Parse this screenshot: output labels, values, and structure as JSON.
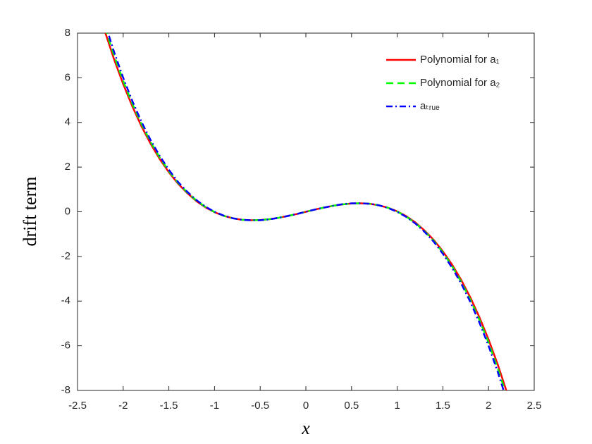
{
  "chart_data": {
    "type": "line",
    "xlabel": "x",
    "ylabel": "drift term",
    "x": [
      -2.2,
      -2.1,
      -2.0,
      -1.9,
      -1.8,
      -1.7,
      -1.6,
      -1.5,
      -1.4,
      -1.3,
      -1.2,
      -1.1,
      -1.0,
      -0.9,
      -0.8,
      -0.7,
      -0.6,
      -0.5,
      -0.4,
      -0.3,
      -0.2,
      -0.1,
      0,
      0.1,
      0.2,
      0.3,
      0.4,
      0.5,
      0.6,
      0.7,
      0.8,
      0.9,
      1.0,
      1.1,
      1.2,
      1.3,
      1.4,
      1.5,
      1.6,
      1.7,
      1.8,
      1.9,
      2.0,
      2.1,
      2.2
    ],
    "series": [
      {
        "name": "Polynomial for a₁",
        "color": "#ff0000",
        "dash": "solid",
        "values": [
          8.07,
          6.83,
          5.72,
          4.72,
          3.83,
          3.05,
          2.36,
          1.77,
          1.26,
          0.84,
          0.48,
          0.2,
          -0.02,
          -0.18,
          -0.29,
          -0.36,
          -0.38,
          -0.37,
          -0.33,
          -0.27,
          -0.19,
          -0.1,
          0,
          0.1,
          0.19,
          0.27,
          0.33,
          0.37,
          0.38,
          0.36,
          0.29,
          0.18,
          0.02,
          -0.2,
          -0.48,
          -0.84,
          -1.26,
          -1.77,
          -2.36,
          -3.05,
          -3.83,
          -4.72,
          -5.72,
          -6.83,
          -8.07
        ]
      },
      {
        "name": "Polynomial for a₂",
        "color": "#00ff00",
        "dash": "dashed",
        "values": [
          8.26,
          7.0,
          5.86,
          4.84,
          3.93,
          3.13,
          2.43,
          1.82,
          1.3,
          0.87,
          0.51,
          0.22,
          -0.01,
          -0.18,
          -0.29,
          -0.36,
          -0.38,
          -0.37,
          -0.33,
          -0.27,
          -0.19,
          -0.1,
          0,
          0.1,
          0.19,
          0.27,
          0.33,
          0.37,
          0.38,
          0.36,
          0.29,
          0.18,
          0.01,
          -0.22,
          -0.51,
          -0.87,
          -1.3,
          -1.82,
          -2.43,
          -3.13,
          -3.93,
          -4.84,
          -5.86,
          -7.0,
          -8.26
        ]
      },
      {
        "name": "aₜᵣᵤₑ",
        "color": "#0000ff",
        "dash": "dashdot",
        "values": [
          8.45,
          7.16,
          6,
          4.96,
          4.03,
          3.21,
          2.5,
          1.88,
          1.34,
          0.9,
          0.53,
          0.23,
          0,
          -0.17,
          -0.29,
          -0.36,
          -0.38,
          -0.38,
          -0.34,
          -0.27,
          -0.19,
          -0.1,
          0,
          0.1,
          0.19,
          0.27,
          0.34,
          0.38,
          0.38,
          0.36,
          0.29,
          0.17,
          0,
          -0.23,
          -0.53,
          -0.9,
          -1.34,
          -1.88,
          -2.5,
          -3.21,
          -4.03,
          -4.96,
          -6,
          -7.16,
          -8.45
        ]
      }
    ],
    "xlim": [
      -2.5,
      2.5
    ],
    "xticks": [
      -2.5,
      -2,
      -1.5,
      -1,
      -0.5,
      0,
      0.5,
      1,
      1.5,
      2,
      2.5
    ],
    "ylim": [
      -8,
      8
    ],
    "yticks": [
      -8,
      -6,
      -4,
      -2,
      0,
      2,
      4,
      6,
      8
    ],
    "grid": false,
    "legend": "upper right"
  }
}
